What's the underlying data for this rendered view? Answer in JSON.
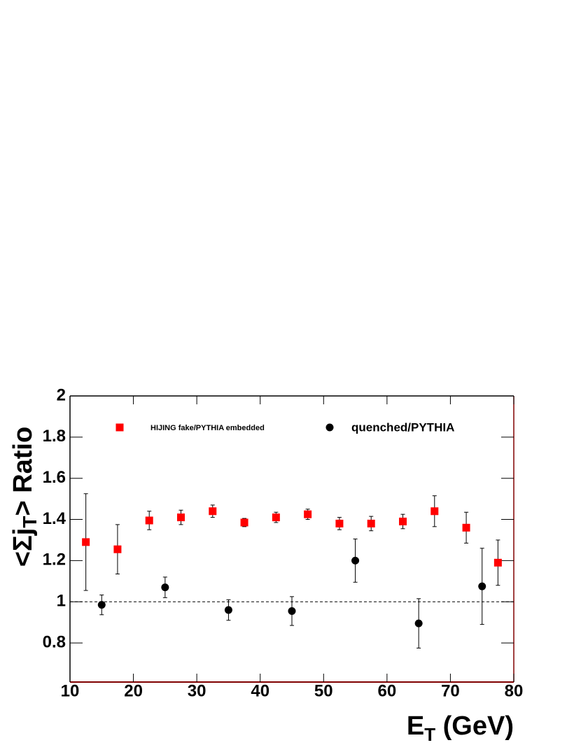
{
  "chart_data": {
    "type": "scatter",
    "xlabel": [
      "E",
      "T",
      " (GeV)"
    ],
    "ylabel": [
      "<Σj",
      "T",
      "> Ratio"
    ],
    "xlim": [
      10,
      80
    ],
    "xticks": [
      10,
      20,
      30,
      40,
      50,
      60,
      70,
      80
    ],
    "ylim": [
      0.61,
      2
    ],
    "yticks": [
      0.8,
      1,
      1.2,
      1.4,
      1.6,
      1.8,
      2
    ],
    "reference_line": 1,
    "series": [
      {
        "name": "HIJING fake/PYTHIA embedded",
        "color": "#ff0000",
        "marker": "square",
        "x": [
          12.5,
          17.5,
          22.5,
          27.5,
          32.5,
          37.5,
          42.5,
          47.5,
          52.5,
          57.5,
          62.5,
          67.5,
          72.5,
          77.5
        ],
        "values": [
          1.29,
          1.255,
          1.395,
          1.41,
          1.44,
          1.385,
          1.41,
          1.425,
          1.38,
          1.38,
          1.39,
          1.44,
          1.36,
          1.19
        ],
        "errors": [
          0.235,
          0.12,
          0.045,
          0.035,
          0.03,
          0.02,
          0.025,
          0.025,
          0.03,
          0.035,
          0.035,
          0.075,
          0.075,
          0.11
        ]
      },
      {
        "name": "quenched/PYTHIA",
        "color": "#000000",
        "marker": "circle",
        "x": [
          15,
          25,
          35,
          45,
          55,
          65,
          75
        ],
        "values": [
          0.985,
          1.07,
          0.96,
          0.955,
          1.2,
          0.895,
          1.075
        ],
        "errors": [
          0.048,
          0.05,
          0.05,
          0.07,
          0.105,
          0.12,
          0.185
        ]
      }
    ]
  }
}
